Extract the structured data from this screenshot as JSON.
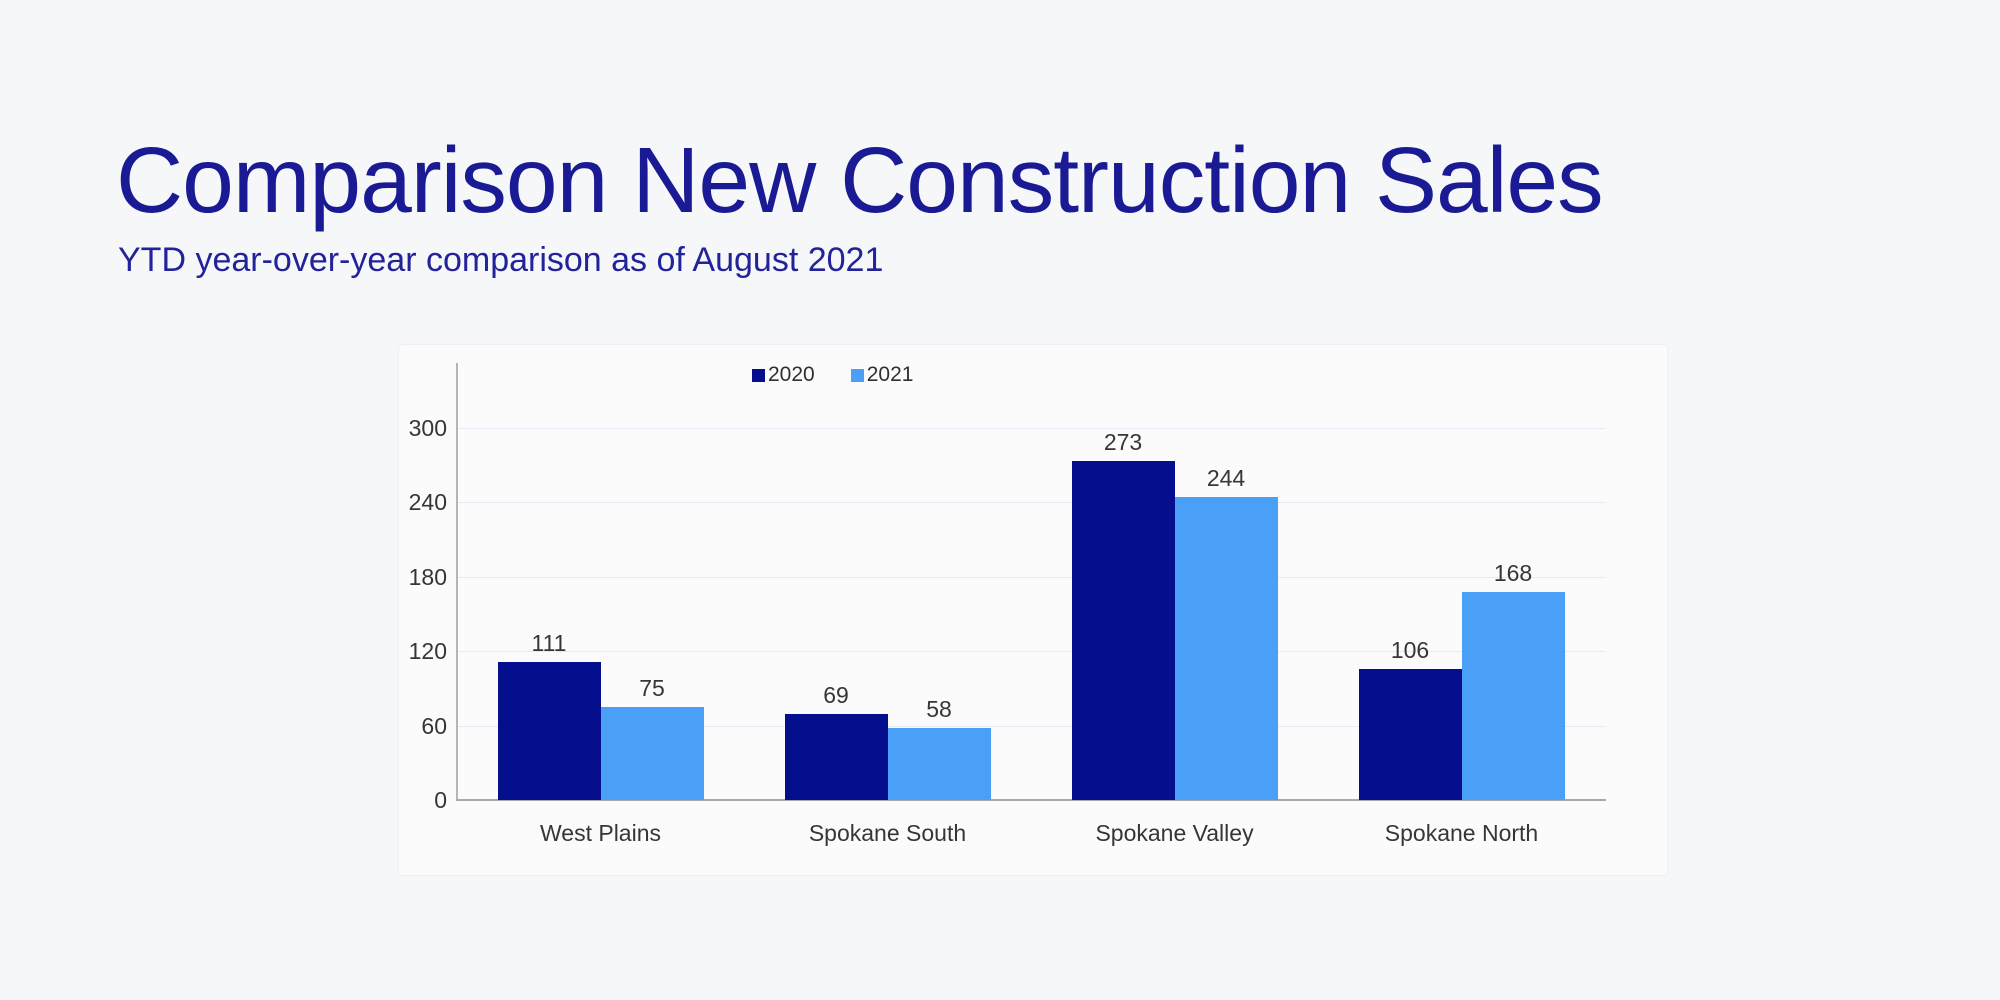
{
  "page": {
    "background": "#f6f7f8"
  },
  "header": {
    "title": "Comparison New Construction Sales",
    "subtitle": "YTD year-over-year comparison as of August 2021",
    "title_color": "#1a1a94",
    "subtitle_color": "#22229a"
  },
  "chart_data": {
    "type": "bar",
    "title": "Comparison New Construction Sales",
    "subtitle": "YTD year-over-year comparison as of August 2021",
    "categories": [
      "West Plains",
      "Spokane South",
      "Spokane Valley",
      "Spokane North"
    ],
    "series": [
      {
        "name": "2020",
        "color": "#050f8e",
        "values": [
          111,
          69,
          273,
          106
        ]
      },
      {
        "name": "2021",
        "color": "#4a9ff7",
        "values": [
          75,
          58,
          244,
          168
        ]
      }
    ],
    "y_axis": {
      "min": 0,
      "max": 300,
      "tick_interval": 60,
      "ticks": [
        0,
        60,
        120,
        180,
        240,
        300
      ]
    },
    "grid": true,
    "legend_position": "top",
    "value_labels": true,
    "value_label_color": "#363636",
    "gridline_color": "#e3ebf4"
  }
}
